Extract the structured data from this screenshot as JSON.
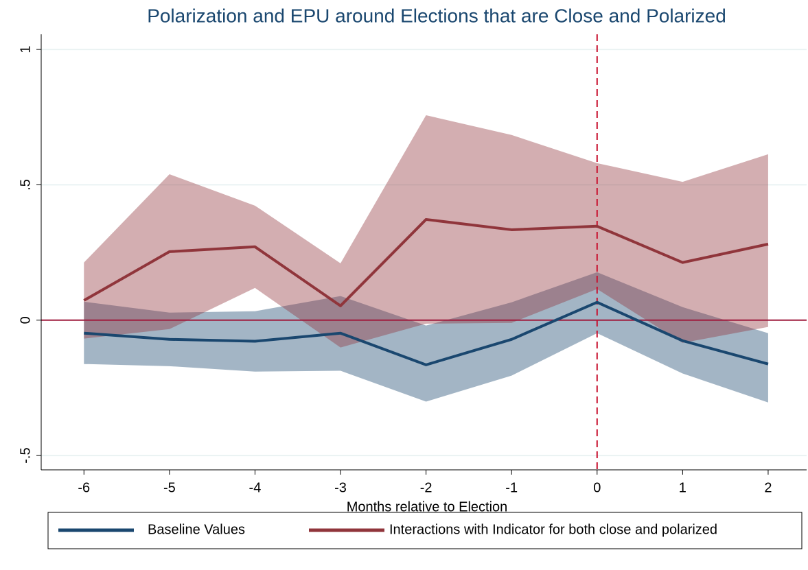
{
  "chart_data": {
    "type": "line",
    "title": "Polarization and EPU around Elections that are Close and Polarized",
    "x_label": "Months relative to Election",
    "x": [
      -6,
      -5,
      -4,
      -3,
      -2,
      -1,
      0,
      1,
      2
    ],
    "xlim": [
      -6.5,
      2.45
    ],
    "xticks": [
      -6,
      -5,
      -4,
      -3,
      -2,
      -1,
      0,
      1,
      2
    ],
    "ylim": [
      -0.553,
      1.056
    ],
    "yticks": [
      {
        "value": -0.5,
        "label": "-.5"
      },
      0,
      {
        "value": 0.5,
        "label": ".5"
      },
      1
    ],
    "grid": true,
    "hline": 0,
    "vline": 0,
    "band_opacity": 0.4,
    "series": [
      {
        "name": "Baseline Values",
        "color": "#1a476f",
        "values": [
          -0.048,
          -0.071,
          -0.078,
          -0.048,
          -0.165,
          -0.071,
          0.066,
          -0.076,
          -0.162
        ],
        "lower": [
          -0.162,
          -0.17,
          -0.19,
          -0.187,
          -0.301,
          -0.205,
          -0.048,
          -0.197,
          -0.304
        ],
        "upper": [
          0.068,
          0.028,
          0.033,
          0.089,
          -0.02,
          0.066,
          0.177,
          0.048,
          -0.048
        ]
      },
      {
        "name": "Interactions with Indicator for both close and polarized",
        "color": "#90353b",
        "values": [
          0.073,
          0.253,
          0.271,
          0.053,
          0.372,
          0.334,
          0.347,
          0.213,
          0.281
        ],
        "lower": [
          -0.068,
          -0.033,
          0.119,
          -0.101,
          -0.013,
          -0.01,
          0.115,
          -0.084,
          -0.025
        ],
        "upper": [
          0.213,
          0.539,
          0.423,
          0.21,
          0.757,
          0.684,
          0.58,
          0.511,
          0.613
        ]
      }
    ]
  }
}
